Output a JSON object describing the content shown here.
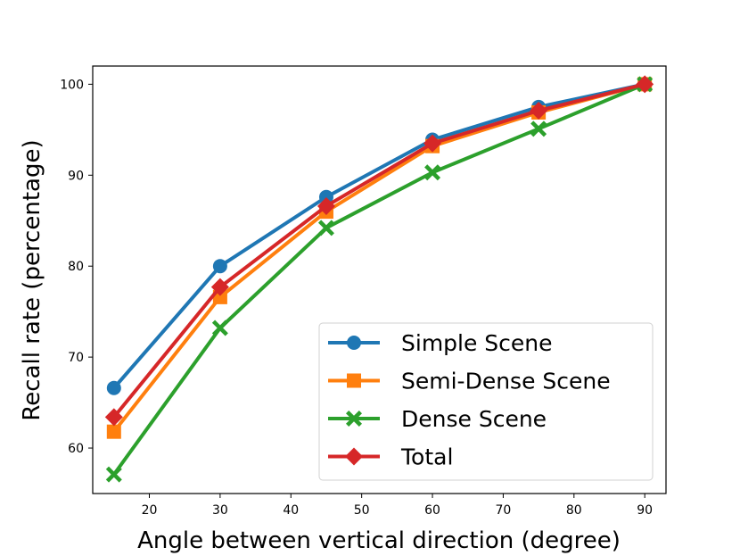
{
  "chart_data": {
    "type": "line",
    "title": "",
    "xlabel": "Angle between vertical direction (degree)",
    "ylabel": "Recall rate (percentage)",
    "x": [
      15,
      30,
      45,
      60,
      75,
      90
    ],
    "xlim": [
      12,
      93
    ],
    "ylim": [
      55,
      102
    ],
    "xticks": [
      "20",
      "30",
      "40",
      "50",
      "60",
      "70",
      "80",
      "90"
    ],
    "yticks": [
      "60",
      "70",
      "80",
      "90",
      "100"
    ],
    "grid": false,
    "legend_position": "lower-right",
    "series": [
      {
        "name": "Simple Scene",
        "color": "#1f77b4",
        "marker": "circle",
        "values": [
          66.6,
          80.0,
          87.6,
          93.9,
          97.5,
          100.0
        ]
      },
      {
        "name": "Semi-Dense Scene",
        "color": "#ff7f0e",
        "marker": "square",
        "values": [
          61.8,
          76.6,
          86.0,
          93.2,
          96.9,
          100.0
        ]
      },
      {
        "name": "Dense Scene",
        "color": "#2ca02c",
        "marker": "x-cross",
        "values": [
          57.1,
          73.2,
          84.2,
          90.3,
          95.1,
          100.0
        ]
      },
      {
        "name": "Total",
        "color": "#d62728",
        "marker": "diamond",
        "values": [
          63.4,
          77.7,
          86.6,
          93.5,
          97.1,
          100.0
        ]
      }
    ]
  }
}
